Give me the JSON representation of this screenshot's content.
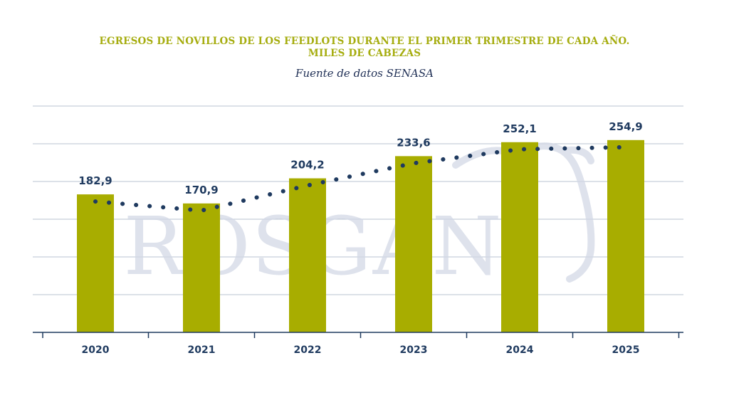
{
  "header": {
    "title_line1": "EGRESOS DE NOVILLOS DE LOS FEEDLOTS DURANTE EL PRIMER TRIMESTRE DE CADA AÑO.",
    "title_line2": "MILES DE CABEZAS",
    "subtitle": "Fuente de datos SENASA"
  },
  "watermark": {
    "text": "ROSGAN"
  },
  "chart_data": {
    "type": "bar",
    "categories": [
      "2020",
      "2021",
      "2022",
      "2023",
      "2024",
      "2025"
    ],
    "values": [
      182.9,
      170.9,
      204.2,
      233.6,
      252.1,
      254.9
    ],
    "value_labels": [
      "182,9",
      "170,9",
      "204,2",
      "233,6",
      "252,1",
      "254,9"
    ],
    "ylim": [
      0,
      300
    ],
    "trendline": {
      "style": "dotted",
      "color": "#1f3a5f"
    },
    "grid": true,
    "colors": {
      "bar": "#a8ad00",
      "label": "#1f3a5f",
      "axis": "#1f3a5f",
      "grid": "#b9c3d2",
      "watermark": "#d3d8e6"
    }
  }
}
